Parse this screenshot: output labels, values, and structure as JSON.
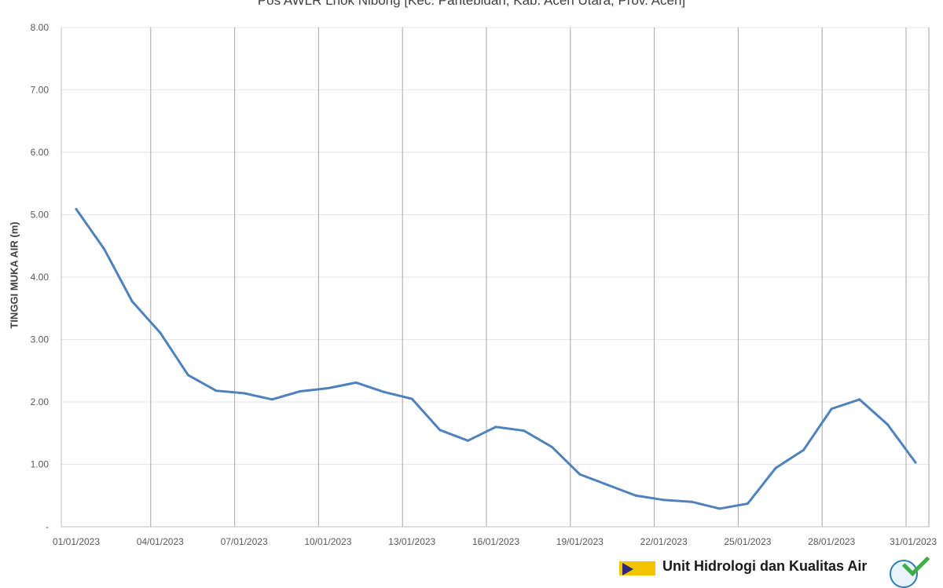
{
  "chart_data": {
    "type": "line",
    "title": "Pos AWLR Lhok Nibong [Kec. Pantebidari, Kab. Aceh Utara, Prov. Aceh]",
    "xlabel": "",
    "ylabel": "TINGGI MUKA AIR (m)",
    "ylim": [
      0,
      8
    ],
    "yticks": [
      "-",
      "1.00",
      "2.00",
      "3.00",
      "4.00",
      "5.00",
      "6.00",
      "7.00",
      "8.00"
    ],
    "xticks": [
      "01/01/2023",
      "04/01/2023",
      "07/01/2023",
      "10/01/2023",
      "13/01/2023",
      "16/01/2023",
      "19/01/2023",
      "22/01/2023",
      "25/01/2023",
      "28/01/2023",
      "31/01/2023"
    ],
    "grid": true,
    "line_color": "#4f81bd",
    "series": [
      {
        "values": [
          5.09,
          4.45,
          3.61,
          3.11,
          2.43,
          2.18,
          2.14,
          2.04,
          2.17,
          2.22,
          2.31,
          2.16,
          2.05,
          1.55,
          1.38,
          1.6,
          1.54,
          1.28,
          0.84,
          0.67,
          0.5,
          0.43,
          0.4,
          0.29,
          0.37,
          0.94,
          1.23,
          1.89,
          2.04,
          1.64,
          1.03
        ]
      }
    ]
  },
  "footer": {
    "logo_text": "Unit Hidrologi dan Kualitas Air"
  }
}
